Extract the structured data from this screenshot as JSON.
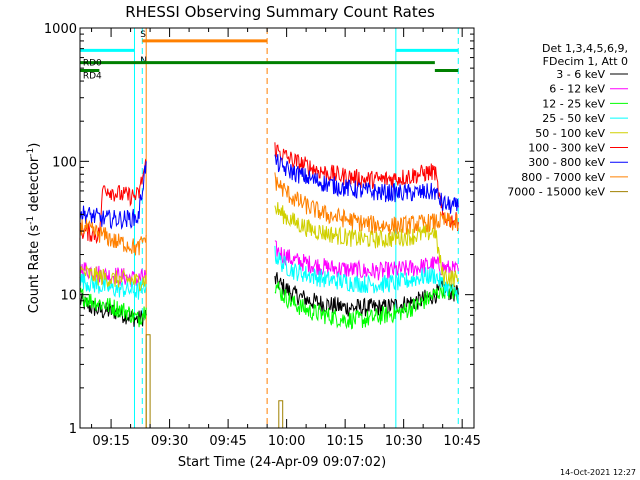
{
  "chart_data": {
    "type": "line",
    "title": "RHESSI Observing Summary Count Rates",
    "xlabel": "Start Time (24-Apr-09 09:07:02)",
    "ylabel_parts": [
      "Count Rate (s",
      "-1",
      " detector",
      "-1",
      ")"
    ],
    "y_scale": "log",
    "ylim": [
      1,
      1000
    ],
    "xlim_minutes_after_start": [
      0,
      101
    ],
    "y_ticks": [
      {
        "value": 1,
        "label": "1"
      },
      {
        "value": 10,
        "label": "10"
      },
      {
        "value": 100,
        "label": "100"
      },
      {
        "value": 1000,
        "label": "1000"
      }
    ],
    "x_ticks": [
      {
        "time": "09:15",
        "label": "09:15"
      },
      {
        "time": "09:30",
        "label": "09:30"
      },
      {
        "time": "09:45",
        "label": "09:45"
      },
      {
        "time": "10:00",
        "label": "10:00"
      },
      {
        "time": "10:15",
        "label": "10:15"
      },
      {
        "time": "10:30",
        "label": "10:30"
      },
      {
        "time": "10:45",
        "label": "10:45"
      }
    ],
    "legend": {
      "placement": "right",
      "header_lines": [
        "Det 1,3,4,5,6,9,",
        "FDecim 1, Att 0"
      ]
    },
    "series": [
      {
        "name": "3 - 6 keV",
        "color": "#000000",
        "segments": [
          {
            "x": [
              "09:07",
              "09:10",
              "09:13",
              "09:16",
              "09:19",
              "09:22",
              "09:24"
            ],
            "y": [
              9,
              8,
              7.5,
              7.5,
              7,
              6.5,
              7
            ]
          },
          {
            "x": [
              "09:57",
              "09:59",
              "10:02",
              "10:06",
              "10:10",
              "10:15",
              "10:20",
              "10:25",
              "10:30",
              "10:34",
              "10:38",
              "10:40",
              "10:44"
            ],
            "y": [
              13,
              11.5,
              10,
              9,
              8.5,
              8,
              8,
              8,
              8.5,
              9,
              10,
              11,
              10
            ]
          }
        ]
      },
      {
        "name": "6 - 12 keV",
        "color": "#ff00ff",
        "segments": [
          {
            "x": [
              "09:07",
              "09:10",
              "09:13",
              "09:16",
              "09:19",
              "09:22",
              "09:24"
            ],
            "y": [
              16,
              15,
              14,
              14,
              13.5,
              13,
              14
            ]
          },
          {
            "x": [
              "09:57",
              "09:59",
              "10:02",
              "10:06",
              "10:10",
              "10:15",
              "10:20",
              "10:25",
              "10:30",
              "10:34",
              "10:38",
              "10:40",
              "10:44"
            ],
            "y": [
              22,
              20,
              18,
              17,
              16,
              15.5,
              15,
              15,
              15.5,
              16,
              17,
              16,
              15
            ]
          }
        ]
      },
      {
        "name": "12 - 25 keV",
        "color": "#00ff00",
        "segments": [
          {
            "x": [
              "09:07",
              "09:10",
              "09:13",
              "09:16",
              "09:19",
              "09:22",
              "09:24"
            ],
            "y": [
              10,
              9,
              8.5,
              8,
              7.5,
              6.5,
              8
            ]
          },
          {
            "x": [
              "09:57",
              "09:59",
              "10:02",
              "10:06",
              "10:10",
              "10:15",
              "10:20",
              "10:25",
              "10:30",
              "10:34",
              "10:38",
              "10:40",
              "10:44"
            ],
            "y": [
              12,
              10,
              8.5,
              7.5,
              7,
              6.5,
              6.5,
              7,
              7.5,
              8.5,
              10,
              11,
              10
            ]
          }
        ]
      },
      {
        "name": "25 - 50 keV",
        "color": "#00ffff",
        "segments": [
          {
            "x": [
              "09:07",
              "09:10",
              "09:13",
              "09:16",
              "09:19",
              "09:22",
              "09:24"
            ],
            "y": [
              13,
              12,
              11.5,
              11,
              11,
              10.5,
              12
            ]
          },
          {
            "x": [
              "09:57",
              "09:59",
              "10:02",
              "10:06",
              "10:10",
              "10:15",
              "10:20",
              "10:25",
              "10:30",
              "10:34",
              "10:38",
              "10:40",
              "10:44"
            ],
            "y": [
              20,
              17,
              15,
              14,
              13,
              12.5,
              12,
              12,
              12.5,
              13.5,
              14,
              12,
              10
            ]
          }
        ]
      },
      {
        "name": "50 - 100 keV",
        "color": "#d0d000",
        "segments": [
          {
            "x": [
              "09:07",
              "09:10",
              "09:13",
              "09:16",
              "09:19",
              "09:22",
              "09:24"
            ],
            "y": [
              15,
              14,
              13.5,
              13,
              13,
              12.5,
              13
            ]
          },
          {
            "x": [
              "09:57",
              "09:59",
              "10:02",
              "10:06",
              "10:10",
              "10:15",
              "10:20",
              "10:25",
              "10:30",
              "10:34",
              "10:38",
              "10:40",
              "10:44"
            ],
            "y": [
              45,
              40,
              35,
              31,
              29,
              27,
              26,
              26,
              27,
              28,
              30,
              14,
              13
            ]
          }
        ]
      },
      {
        "name": "100 - 300 keV",
        "color": "#ff0000",
        "segments": [
          {
            "x": [
              "09:07",
              "09:10",
              "09:12",
              "09:13",
              "09:16",
              "09:19",
              "09:22",
              "09:24"
            ],
            "y": [
              30,
              29,
              28,
              65,
              58,
              55,
              55,
              100
            ]
          },
          {
            "x": [
              "09:57",
              "09:59",
              "10:02",
              "10:06",
              "10:10",
              "10:15",
              "10:20",
              "10:25",
              "10:30",
              "10:34",
              "10:38",
              "10:40",
              "10:44"
            ],
            "y": [
              125,
              112,
              100,
              90,
              82,
              77,
              73,
              73,
              76,
              80,
              84,
              38,
              35
            ]
          }
        ]
      },
      {
        "name": "300 - 800 keV",
        "color": "#0000ff",
        "segments": [
          {
            "x": [
              "09:07",
              "09:10",
              "09:13",
              "09:16",
              "09:19",
              "09:22",
              "09:24"
            ],
            "y": [
              41,
              39,
              37,
              37,
              37,
              38,
              100
            ]
          },
          {
            "x": [
              "09:57",
              "09:59",
              "10:02",
              "10:06",
              "10:10",
              "10:15",
              "10:20",
              "10:25",
              "10:30",
              "10:34",
              "10:38",
              "10:40",
              "10:44"
            ],
            "y": [
              100,
              90,
              82,
              74,
              68,
              63,
              60,
              58,
              58,
              58,
              59,
              48,
              45
            ]
          }
        ]
      },
      {
        "name": "800 - 7000 keV",
        "color": "#ff8000",
        "segments": [
          {
            "x": [
              "09:07",
              "09:10",
              "09:13",
              "09:16",
              "09:19",
              "09:22",
              "09:24"
            ],
            "y": [
              33,
              30,
              28,
              25,
              24,
              22,
              28
            ]
          },
          {
            "x": [
              "09:57",
              "09:59",
              "10:02",
              "10:06",
              "10:10",
              "10:15",
              "10:20",
              "10:25",
              "10:30",
              "10:34",
              "10:38",
              "10:40",
              "10:44"
            ],
            "y": [
              72,
              62,
              52,
              45,
              40,
              37,
              34,
              33,
              33,
              34,
              35,
              36,
              34
            ]
          }
        ]
      },
      {
        "name": "7000 - 15000 keV",
        "color": "#a08000",
        "segments": [
          {
            "x": [
              "09:24",
              "09:24",
              "09:25",
              "09:25"
            ],
            "y": [
              1,
              5,
              5,
              1
            ]
          },
          {
            "x": [
              "09:58",
              "09:58",
              "09:59",
              "09:59"
            ],
            "y": [
              1,
              1.6,
              1.6,
              1
            ]
          }
        ]
      }
    ],
    "annotations": [
      {
        "type": "bar",
        "label": "S",
        "color": "#ff8000",
        "x": [
          "09:23",
          "09:55"
        ],
        "y": 800
      },
      {
        "type": "text",
        "label": "N",
        "color": "#00ffff",
        "x": "09:23",
        "y": 670
      },
      {
        "type": "bar",
        "label": "RD0",
        "color": "#008000",
        "x": [
          "09:07",
          "10:38"
        ],
        "y": 550
      },
      {
        "type": "bar",
        "label": "RD4",
        "color": "#008000",
        "x": [
          "09:07",
          "09:12"
        ],
        "y": 480
      },
      {
        "type": "bar",
        "label": "",
        "color": "#008000",
        "x": [
          "10:38",
          "10:44"
        ],
        "y": 480
      },
      {
        "type": "bar",
        "label": "",
        "color": "#00ffff",
        "x": [
          "09:07",
          "09:21"
        ],
        "y": 680
      },
      {
        "type": "bar",
        "label": "",
        "color": "#00ffff",
        "x": [
          "10:28",
          "10:44"
        ],
        "y": 680
      }
    ],
    "vertical_markers": [
      {
        "x": "09:21",
        "color": "#00ffff",
        "style": "solid"
      },
      {
        "x": "09:23",
        "color": "#00ffff",
        "style": "dashed"
      },
      {
        "x": "09:24",
        "color": "#ff8000",
        "style": "solid"
      },
      {
        "x": "09:55",
        "color": "#ff8000",
        "style": "dashed"
      },
      {
        "x": "10:28",
        "color": "#00ffff",
        "style": "solid"
      },
      {
        "x": "10:44",
        "color": "#00ffff",
        "style": "dashed"
      }
    ],
    "grid": false
  },
  "footer": {
    "timestamp": "14-Oct-2021 12:27"
  }
}
